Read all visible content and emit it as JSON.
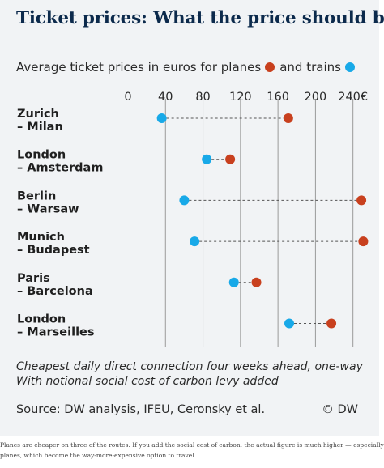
{
  "header": {
    "title": "Ticket prices: What the price should be",
    "subtitle_before": "Average ticket prices in euros for planes",
    "subtitle_between": "and trains"
  },
  "colors": {
    "planes": "#c8401e",
    "trains": "#18a9e8",
    "connector": "#555555",
    "gridline": "#9a9a9a",
    "card_background": "#f1f3f5"
  },
  "chart_data": {
    "type": "dot-plot",
    "title": "Ticket prices: What the price should be",
    "xlim": [
      0,
      250
    ],
    "ticks": [
      0,
      40,
      80,
      120,
      160,
      200,
      240
    ],
    "tick_labels": [
      "0",
      "40",
      "80",
      "120",
      "160",
      "200",
      "240€"
    ],
    "series": [
      {
        "name": "planes",
        "values": [
          171,
          109,
          249,
          251,
          137,
          217
        ]
      },
      {
        "name": "trains",
        "values": [
          36,
          84,
          60,
          71,
          113,
          172
        ]
      }
    ],
    "categories": [
      [
        "Zurich",
        "– Milan"
      ],
      [
        "London",
        "– Amsterdam"
      ],
      [
        "Berlin",
        "– Warsaw"
      ],
      [
        "Munich",
        "– Budapest"
      ],
      [
        "Paris",
        "– Barcelona"
      ],
      [
        "London",
        "– Marseilles"
      ]
    ]
  },
  "footer": {
    "note_line1": "Cheapest daily direct connection four weeks ahead, one-way",
    "note_line2": "With notional social cost of carbon levy added",
    "source": "Source: DW analysis, IFEU, Ceronsky et al.",
    "copyright": "© DW"
  },
  "caption": {
    "line1": "Planes are cheaper on three of the routes. If you add the social cost of carbon, the actual figure is much higher — especially for",
    "line2": "planes, which become the way-more-expensive option to travel."
  }
}
